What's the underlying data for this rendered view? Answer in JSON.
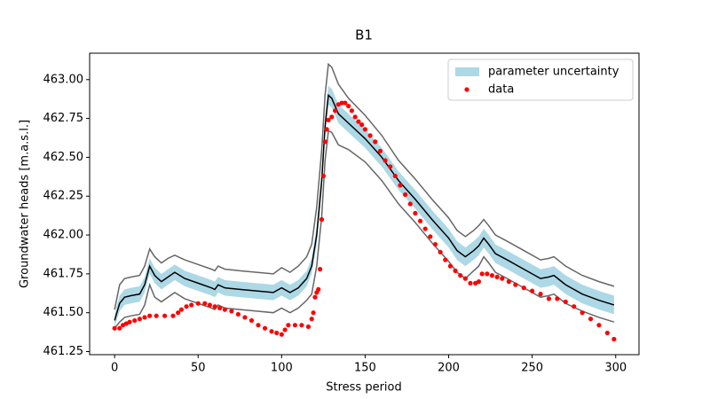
{
  "chart_data": {
    "type": "line",
    "title": "B1",
    "xlabel": "Stress period",
    "ylabel": "Groundwater heads [m.a.s.l.]",
    "xlim": [
      -14.95,
      313.95
    ],
    "ylim": [
      461.23,
      463.17
    ],
    "xticks": [
      0,
      50,
      100,
      150,
      200,
      250,
      300
    ],
    "yticks": [
      461.25,
      {
        "value": 461.5,
        "label": "461.50"
      },
      461.75,
      {
        "value": 462.0,
        "label": "462.00"
      },
      462.25,
      {
        "value": 462.5,
        "label": "462.50"
      },
      462.75,
      {
        "value": 463.0,
        "label": "463.00"
      }
    ],
    "legend": "upper right",
    "x": [
      0,
      3,
      6,
      10,
      15,
      18,
      21,
      24,
      28,
      32,
      36,
      42,
      50,
      58,
      60,
      62,
      66,
      75,
      85,
      95,
      100,
      105,
      110,
      115,
      118,
      121,
      124,
      126,
      128,
      130,
      134,
      140,
      150,
      160,
      170,
      180,
      190,
      200,
      205,
      210,
      215,
      218,
      221,
      224,
      228,
      235,
      245,
      255,
      260,
      263,
      270,
      280,
      290,
      299
    ],
    "band": {
      "name": "parameter uncertainty",
      "color": "#add8e6",
      "lower": [
        461.41,
        461.51,
        461.55,
        461.56,
        461.57,
        461.63,
        461.75,
        461.69,
        461.65,
        461.68,
        461.71,
        461.67,
        461.64,
        461.61,
        461.6,
        461.63,
        461.61,
        461.6,
        461.59,
        461.58,
        461.61,
        461.58,
        461.61,
        461.67,
        461.75,
        461.94,
        462.29,
        462.64,
        462.84,
        462.82,
        462.72,
        462.66,
        462.56,
        462.44,
        462.29,
        462.17,
        462.04,
        461.92,
        461.84,
        461.8,
        461.84,
        461.87,
        461.92,
        461.88,
        461.82,
        461.78,
        461.72,
        461.66,
        461.67,
        461.68,
        461.62,
        461.56,
        461.52,
        461.49
      ],
      "upper": [
        461.49,
        461.61,
        461.65,
        461.66,
        461.67,
        461.73,
        461.85,
        461.79,
        461.75,
        461.78,
        461.81,
        461.77,
        461.74,
        461.71,
        461.7,
        461.73,
        461.71,
        461.7,
        461.69,
        461.68,
        461.71,
        461.68,
        461.71,
        461.77,
        461.85,
        462.06,
        462.41,
        462.76,
        462.96,
        462.94,
        462.84,
        462.78,
        462.68,
        462.56,
        462.41,
        462.29,
        462.16,
        462.04,
        461.96,
        461.92,
        461.96,
        461.99,
        462.04,
        462.0,
        461.94,
        461.9,
        461.84,
        461.78,
        461.79,
        461.8,
        461.74,
        461.68,
        461.64,
        461.61
      ]
    },
    "lines": [
      {
        "color": "#666666",
        "values": [
          461.52,
          461.68,
          461.72,
          461.73,
          461.74,
          461.8,
          461.91,
          461.86,
          461.82,
          461.85,
          461.87,
          461.84,
          461.81,
          461.78,
          461.77,
          461.8,
          461.78,
          461.77,
          461.76,
          461.75,
          461.79,
          461.76,
          461.8,
          461.86,
          461.94,
          462.18,
          462.55,
          462.9,
          463.1,
          463.08,
          462.97,
          462.88,
          462.77,
          462.64,
          462.48,
          462.36,
          462.23,
          462.11,
          462.03,
          461.99,
          462.03,
          462.06,
          462.1,
          462.06,
          462.0,
          461.96,
          461.9,
          461.84,
          461.85,
          461.86,
          461.8,
          461.74,
          461.7,
          461.67
        ]
      },
      {
        "color": "#666666",
        "values": [
          461.4,
          461.44,
          461.47,
          461.48,
          461.49,
          461.55,
          461.68,
          461.6,
          461.57,
          461.6,
          461.63,
          461.59,
          461.56,
          461.53,
          461.52,
          461.55,
          461.53,
          461.52,
          461.51,
          461.5,
          461.53,
          461.5,
          461.53,
          461.58,
          461.62,
          461.8,
          462.12,
          462.48,
          462.67,
          462.66,
          462.58,
          462.55,
          462.47,
          462.35,
          462.2,
          462.08,
          461.95,
          461.83,
          461.76,
          461.72,
          461.77,
          461.8,
          461.86,
          461.82,
          461.76,
          461.72,
          461.66,
          461.6,
          461.61,
          461.62,
          461.56,
          461.51,
          461.47,
          461.44
        ]
      },
      {
        "color": "#000000",
        "values": [
          461.45,
          461.56,
          461.6,
          461.61,
          461.62,
          461.68,
          461.8,
          461.74,
          461.7,
          461.73,
          461.76,
          461.72,
          461.69,
          461.66,
          461.65,
          461.68,
          461.66,
          461.65,
          461.64,
          461.63,
          461.66,
          461.63,
          461.66,
          461.72,
          461.8,
          462.0,
          462.35,
          462.7,
          462.9,
          462.88,
          462.78,
          462.72,
          462.62,
          462.5,
          462.35,
          462.23,
          462.1,
          461.98,
          461.9,
          461.86,
          461.9,
          461.93,
          461.98,
          461.94,
          461.88,
          461.84,
          461.78,
          461.72,
          461.73,
          461.74,
          461.68,
          461.62,
          461.58,
          461.55
        ]
      }
    ],
    "scatter": {
      "name": "data",
      "color": "#ff0000",
      "x": [
        0,
        3,
        5,
        7,
        9,
        12,
        15,
        18,
        21,
        25,
        30,
        35,
        38,
        40,
        43,
        46,
        50,
        54,
        57,
        60,
        63,
        66,
        70,
        74,
        78,
        82,
        86,
        90,
        94,
        97,
        100,
        102,
        104,
        108,
        112,
        116,
        118,
        119,
        120,
        121,
        122,
        123,
        124,
        125,
        126,
        127,
        128,
        130,
        132,
        134,
        136,
        138,
        140,
        142,
        144,
        146,
        148,
        150,
        153,
        156,
        159,
        162,
        165,
        168,
        171,
        174,
        177,
        180,
        183,
        186,
        189,
        192,
        195,
        198,
        201,
        204,
        207,
        210,
        213,
        216,
        218,
        220,
        223,
        226,
        229,
        232,
        236,
        240,
        245,
        250,
        255,
        260,
        265,
        270,
        275,
        280,
        285,
        290,
        295,
        299
      ],
      "values": [
        461.4,
        461.4,
        461.42,
        461.43,
        461.44,
        461.45,
        461.46,
        461.47,
        461.48,
        461.48,
        461.48,
        461.48,
        461.5,
        461.52,
        461.54,
        461.55,
        461.56,
        461.56,
        461.55,
        461.54,
        461.53,
        461.52,
        461.51,
        461.49,
        461.47,
        461.45,
        461.42,
        461.4,
        461.38,
        461.37,
        461.36,
        461.39,
        461.42,
        461.42,
        461.42,
        461.41,
        461.46,
        461.5,
        461.6,
        461.63,
        461.65,
        461.78,
        462.1,
        462.38,
        462.6,
        462.68,
        462.74,
        462.76,
        462.8,
        462.84,
        462.85,
        462.85,
        462.83,
        462.8,
        462.76,
        462.73,
        462.71,
        462.68,
        462.64,
        462.6,
        462.54,
        462.48,
        462.44,
        462.38,
        462.32,
        462.26,
        462.2,
        462.14,
        462.09,
        462.04,
        461.99,
        461.94,
        461.89,
        461.84,
        461.8,
        461.77,
        461.74,
        461.72,
        461.69,
        461.69,
        461.7,
        461.75,
        461.75,
        461.74,
        461.73,
        461.72,
        461.7,
        461.68,
        461.66,
        461.64,
        461.62,
        461.59,
        461.59,
        461.57,
        461.54,
        461.5,
        461.46,
        461.42,
        461.37,
        461.33
      ]
    }
  }
}
